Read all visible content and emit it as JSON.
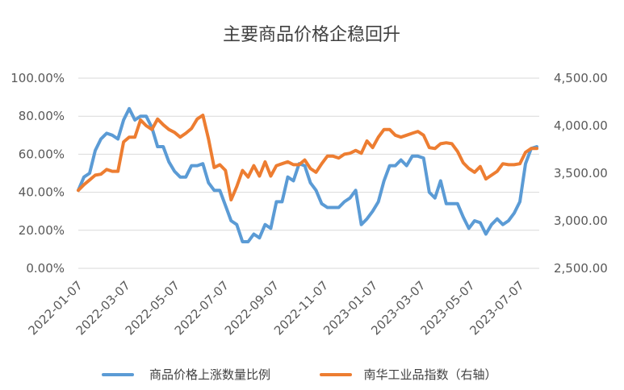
{
  "chart_data": {
    "type": "line",
    "title": "主要商品价格企稳回升",
    "x_tick_labels": [
      "2022-01-07",
      "2022-03-07",
      "2022-05-07",
      "2022-07-07",
      "2022-09-07",
      "2022-11-07",
      "2023-01-07",
      "2023-03-07",
      "2023-05-07",
      "2023-07-07"
    ],
    "x_range": [
      "2022-01-07",
      "2023-07-31"
    ],
    "left_axis": {
      "range": [
        0,
        100
      ],
      "ticks": [
        0,
        20,
        40,
        60,
        80,
        100
      ],
      "tick_labels": [
        "0.00%",
        "20.00%",
        "40.00%",
        "60.00%",
        "80.00%",
        "100.00%"
      ]
    },
    "right_axis": {
      "range": [
        2500,
        4500
      ],
      "ticks": [
        2500,
        3000,
        3500,
        4000,
        4500
      ],
      "tick_labels": [
        "2,500.00",
        "3,000.00",
        "3,500.00",
        "4,000.00",
        "4,500.00"
      ]
    },
    "legend_position": "bottom",
    "series": [
      {
        "name": "商品价格上涨数量比例",
        "axis": "left",
        "color": "#5B9BD5",
        "x": [
          "2022-01-07",
          "2022-01-14",
          "2022-01-21",
          "2022-01-28",
          "2022-02-04",
          "2022-02-11",
          "2022-02-18",
          "2022-02-25",
          "2022-03-04",
          "2022-03-11",
          "2022-03-18",
          "2022-03-25",
          "2022-04-01",
          "2022-04-08",
          "2022-04-15",
          "2022-04-22",
          "2022-04-29",
          "2022-05-06",
          "2022-05-13",
          "2022-05-20",
          "2022-05-27",
          "2022-06-03",
          "2022-06-10",
          "2022-06-17",
          "2022-06-24",
          "2022-07-01",
          "2022-07-08",
          "2022-07-15",
          "2022-07-22",
          "2022-07-29",
          "2022-08-05",
          "2022-08-12",
          "2022-08-19",
          "2022-08-26",
          "2022-09-02",
          "2022-09-09",
          "2022-09-16",
          "2022-09-23",
          "2022-09-30",
          "2022-10-07",
          "2022-10-14",
          "2022-10-21",
          "2022-10-28",
          "2022-11-04",
          "2022-11-11",
          "2022-11-18",
          "2022-11-25",
          "2022-12-02",
          "2022-12-09",
          "2022-12-16",
          "2022-12-23",
          "2022-12-30",
          "2023-01-06",
          "2023-01-13",
          "2023-01-20",
          "2023-01-27",
          "2023-02-03",
          "2023-02-10",
          "2023-02-17",
          "2023-02-24",
          "2023-03-03",
          "2023-03-10",
          "2023-03-17",
          "2023-03-24",
          "2023-03-31",
          "2023-04-07",
          "2023-04-14",
          "2023-04-21",
          "2023-04-28",
          "2023-05-05",
          "2023-05-12",
          "2023-05-19",
          "2023-05-26",
          "2023-06-02",
          "2023-06-09",
          "2023-06-16",
          "2023-06-23",
          "2023-06-30",
          "2023-07-07",
          "2023-07-14",
          "2023-07-21",
          "2023-07-28"
        ],
        "values": [
          41,
          48,
          50,
          62,
          68,
          71,
          70,
          68,
          78,
          84,
          78,
          80,
          80,
          74,
          64,
          64,
          56,
          51,
          48,
          48,
          54,
          54,
          55,
          45,
          41,
          41,
          33,
          25,
          23,
          14,
          14,
          18,
          16,
          23,
          21,
          35,
          35,
          48,
          46,
          55,
          54,
          45,
          41,
          34,
          32,
          32,
          32,
          35,
          37,
          41,
          23,
          26,
          30,
          35,
          46,
          54,
          54,
          57,
          54,
          59,
          59,
          58,
          40,
          37,
          46,
          34,
          34,
          34,
          27,
          21,
          25,
          24,
          18,
          23,
          26,
          23,
          25,
          29,
          35,
          55,
          63,
          64
        ]
      },
      {
        "name": "南华工业品指数（右轴）",
        "axis": "right",
        "color": "#ED7D31",
        "x": [
          "2022-01-07",
          "2022-01-14",
          "2022-01-21",
          "2022-01-28",
          "2022-02-04",
          "2022-02-11",
          "2022-02-18",
          "2022-02-25",
          "2022-03-04",
          "2022-03-11",
          "2022-03-18",
          "2022-03-25",
          "2022-04-01",
          "2022-04-08",
          "2022-04-15",
          "2022-04-22",
          "2022-04-29",
          "2022-05-06",
          "2022-05-13",
          "2022-05-20",
          "2022-05-27",
          "2022-06-03",
          "2022-06-10",
          "2022-06-17",
          "2022-06-24",
          "2022-07-01",
          "2022-07-08",
          "2022-07-15",
          "2022-07-22",
          "2022-07-29",
          "2022-08-05",
          "2022-08-12",
          "2022-08-19",
          "2022-08-26",
          "2022-09-02",
          "2022-09-09",
          "2022-09-16",
          "2022-09-23",
          "2022-09-30",
          "2022-10-07",
          "2022-10-14",
          "2022-10-21",
          "2022-10-28",
          "2022-11-04",
          "2022-11-11",
          "2022-11-18",
          "2022-11-25",
          "2022-12-02",
          "2022-12-09",
          "2022-12-16",
          "2022-12-23",
          "2022-12-30",
          "2023-01-06",
          "2023-01-13",
          "2023-01-20",
          "2023-01-27",
          "2023-02-03",
          "2023-02-10",
          "2023-02-17",
          "2023-02-24",
          "2023-03-03",
          "2023-03-10",
          "2023-03-17",
          "2023-03-24",
          "2023-03-31",
          "2023-04-07",
          "2023-04-14",
          "2023-04-21",
          "2023-04-28",
          "2023-05-05",
          "2023-05-12",
          "2023-05-19",
          "2023-05-26",
          "2023-06-02",
          "2023-06-09",
          "2023-06-16",
          "2023-06-23",
          "2023-06-30",
          "2023-07-07",
          "2023-07-14",
          "2023-07-21",
          "2023-07-28"
        ],
        "values": [
          3320,
          3380,
          3430,
          3480,
          3490,
          3540,
          3520,
          3520,
          3830,
          3880,
          3880,
          4060,
          4000,
          3960,
          4070,
          4010,
          3960,
          3930,
          3880,
          3920,
          3970,
          4070,
          4110,
          3860,
          3560,
          3590,
          3530,
          3220,
          3360,
          3530,
          3460,
          3580,
          3470,
          3620,
          3470,
          3580,
          3600,
          3620,
          3590,
          3590,
          3640,
          3550,
          3510,
          3600,
          3680,
          3680,
          3660,
          3700,
          3710,
          3740,
          3710,
          3840,
          3770,
          3880,
          3960,
          3960,
          3900,
          3880,
          3900,
          3920,
          3940,
          3900,
          3770,
          3760,
          3810,
          3820,
          3810,
          3730,
          3610,
          3550,
          3510,
          3570,
          3440,
          3480,
          3520,
          3600,
          3590,
          3590,
          3600,
          3720,
          3760,
          3760
        ]
      }
    ]
  }
}
